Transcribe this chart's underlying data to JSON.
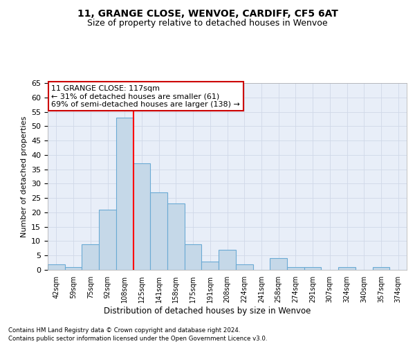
{
  "title": "11, GRANGE CLOSE, WENVOE, CARDIFF, CF5 6AT",
  "subtitle": "Size of property relative to detached houses in Wenvoe",
  "xlabel": "Distribution of detached houses by size in Wenvoe",
  "ylabel": "Number of detached properties",
  "footer_line1": "Contains HM Land Registry data © Crown copyright and database right 2024.",
  "footer_line2": "Contains public sector information licensed under the Open Government Licence v3.0.",
  "bin_labels": [
    "42sqm",
    "59sqm",
    "75sqm",
    "92sqm",
    "108sqm",
    "125sqm",
    "141sqm",
    "158sqm",
    "175sqm",
    "191sqm",
    "208sqm",
    "224sqm",
    "241sqm",
    "258sqm",
    "274sqm",
    "291sqm",
    "307sqm",
    "324sqm",
    "340sqm",
    "357sqm",
    "374sqm"
  ],
  "bar_heights": [
    2,
    1,
    9,
    21,
    53,
    37,
    27,
    23,
    9,
    3,
    7,
    2,
    0,
    4,
    1,
    1,
    0,
    1,
    0,
    1,
    0
  ],
  "bar_color": "#c5d8e8",
  "bar_edge_color": "#6aaad4",
  "red_line_x": 4.5,
  "annotation_title": "11 GRANGE CLOSE: 117sqm",
  "annotation_line1": "← 31% of detached houses are smaller (61)",
  "annotation_line2": "69% of semi-detached houses are larger (138) →",
  "annotation_box_color": "#ffffff",
  "annotation_box_edge": "#cc0000",
  "ylim": [
    0,
    65
  ],
  "yticks": [
    0,
    5,
    10,
    15,
    20,
    25,
    30,
    35,
    40,
    45,
    50,
    55,
    60,
    65
  ],
  "grid_color": "#d0d8e8",
  "background_color": "#e8eef8",
  "fig_background": "#ffffff"
}
